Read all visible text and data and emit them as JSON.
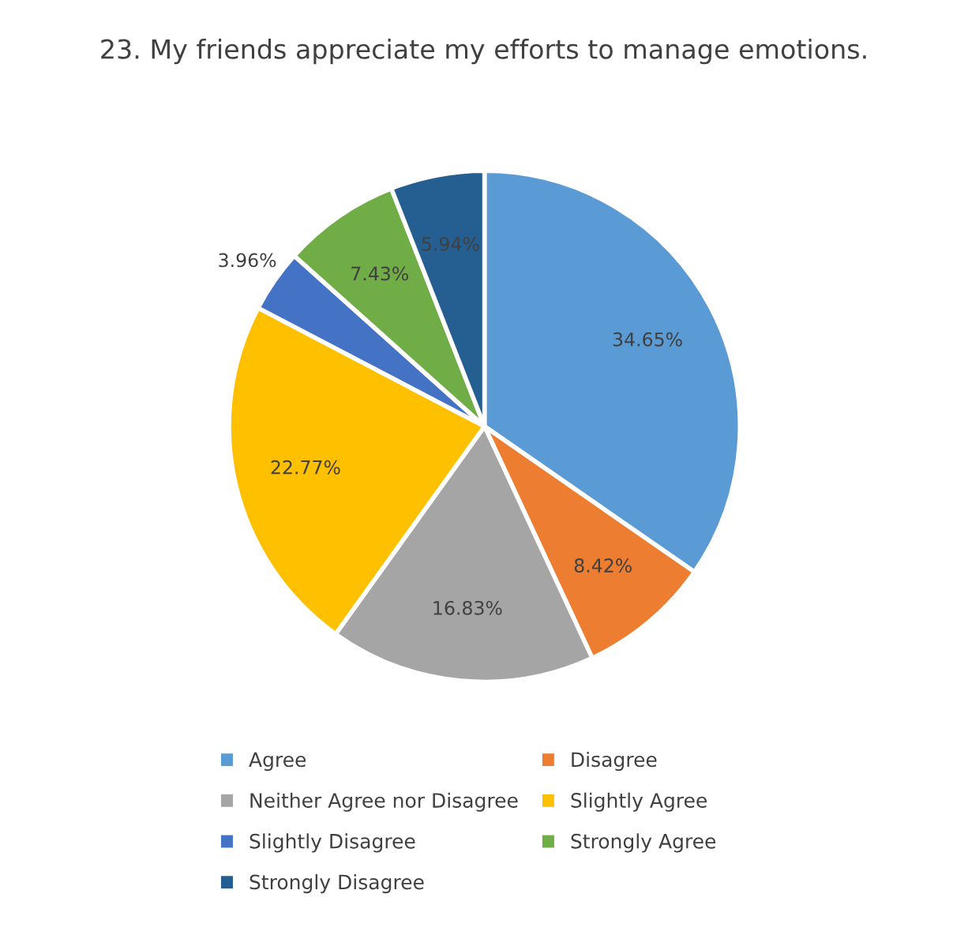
{
  "chart_data": {
    "type": "pie",
    "title": "23. My friends appreciate my efforts to manage emotions.",
    "categories": [
      "Agree",
      "Disagree",
      "Neither Agree nor Disagree",
      "Slightly Agree",
      "Slightly Disagree",
      "Strongly Agree",
      "Strongly Disagree"
    ],
    "values": [
      34.65,
      8.42,
      16.83,
      22.77,
      3.96,
      7.43,
      5.94
    ],
    "value_labels": [
      "34.65%",
      "8.42%",
      "16.83%",
      "22.77%",
      "3.96%",
      "7.43%",
      "5.94%"
    ],
    "colors": [
      "#5b9bd5",
      "#ed7d31",
      "#a5a5a5",
      "#ffc000",
      "#4472c4",
      "#70ad47",
      "#255e91"
    ],
    "legend": "bottom"
  }
}
